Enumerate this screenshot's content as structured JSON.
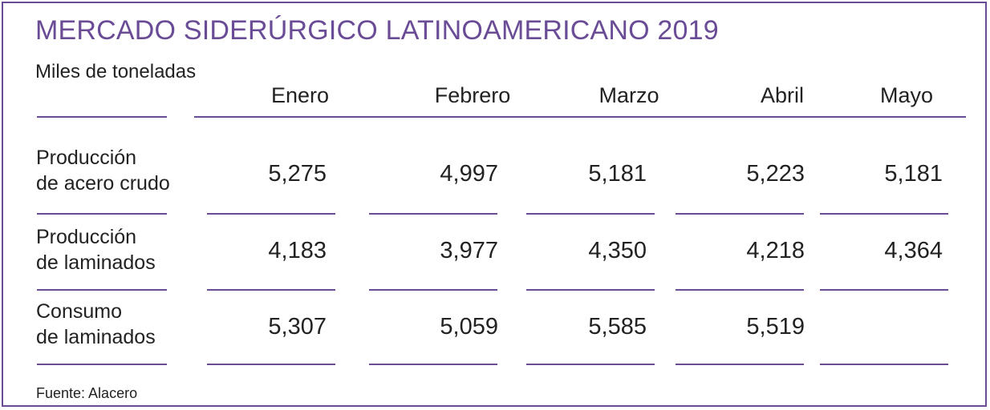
{
  "title": "MERCADO SIDERÚRGICO LATINOAMERICANO 2019",
  "subtitle": "Miles de toneladas",
  "source": "Fuente: Alacero",
  "colors": {
    "accent": "#6a4b96",
    "text": "#222222"
  },
  "chart_data": {
    "type": "table",
    "title": "MERCADO SIDERÚRGICO LATINOAMERICANO 2019",
    "unit_label": "Miles de toneladas",
    "columns": [
      "Enero",
      "Febrero",
      "Marzo",
      "Abril",
      "Mayo"
    ],
    "rows": [
      {
        "label": [
          "Producción",
          "de acero crudo"
        ],
        "values": [
          "5,275",
          "4,997",
          "5,181",
          "5,223",
          "5,181"
        ]
      },
      {
        "label": [
          "Producción",
          "de laminados"
        ],
        "values": [
          "4,183",
          "3,977",
          "4,350",
          "4,218",
          "4,364"
        ]
      },
      {
        "label": [
          "Consumo",
          "de laminados"
        ],
        "values": [
          "5,307",
          "5,059",
          "5,585",
          "5,519",
          ""
        ]
      }
    ],
    "source": "Fuente: Alacero"
  }
}
